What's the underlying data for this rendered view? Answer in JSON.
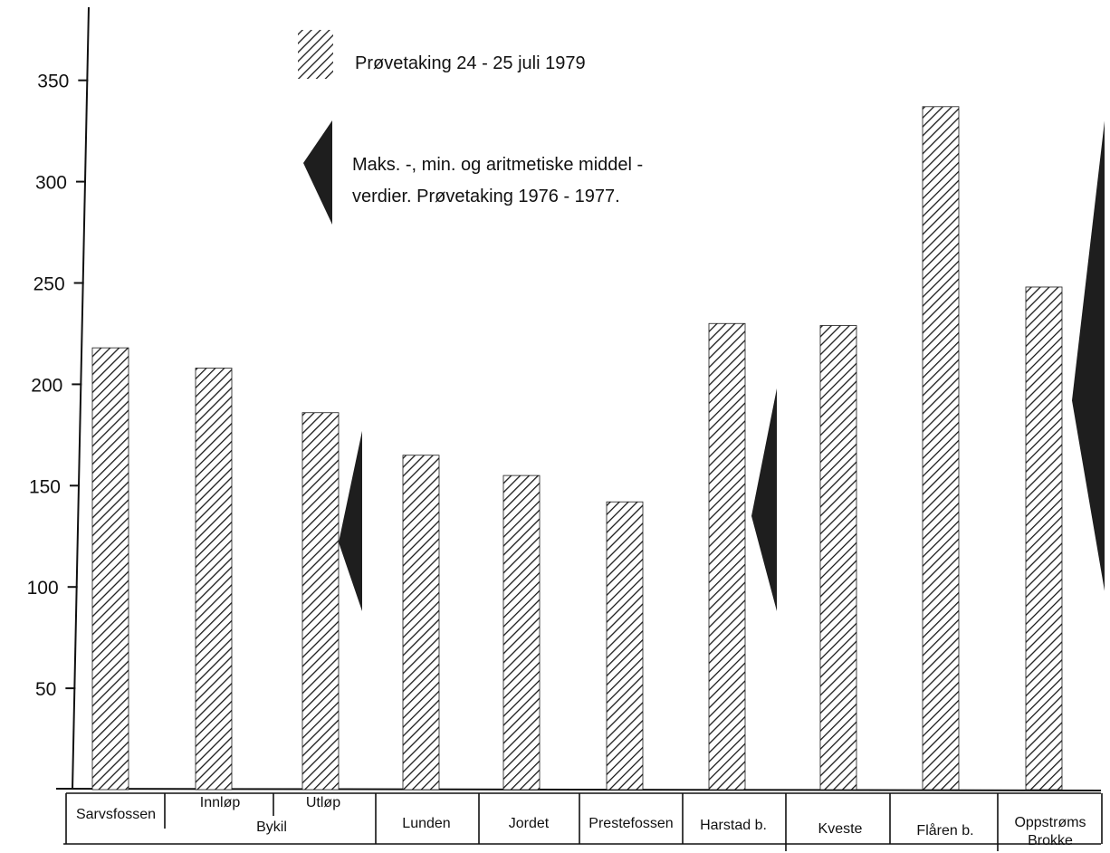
{
  "chart_data": {
    "type": "bar",
    "title": "",
    "xlabel": "",
    "ylabel": "",
    "ylim": [
      0,
      375
    ],
    "yticks": [
      50,
      100,
      150,
      200,
      250,
      300,
      350
    ],
    "grid": false,
    "legend": {
      "placement": "top-center",
      "hatch_label": "Prøvetaking 24 - 25 juli 1979",
      "range_label_line1": "Maks. -, min. og aritmetiske middel -",
      "range_label_line2": "verdier. Prøvetaking 1976 - 1977."
    },
    "categories": [
      "Sarvsfossen",
      "Innløp",
      "Utløp",
      "Lunden",
      "Jordet",
      "Prestefossen",
      "Harstad b.",
      "Kveste",
      "Flåren b.",
      "Oppstrøms Brokke"
    ],
    "group_label": "Bykil",
    "category_display": [
      [
        "Sarvsfossen"
      ],
      [
        "Innløp"
      ],
      [
        "Utløp"
      ],
      [
        "Lunden"
      ],
      [
        "Jordet"
      ],
      [
        "Prestefossen"
      ],
      [
        "Harstad b."
      ],
      [
        "Kveste"
      ],
      [
        "Flåren b."
      ],
      [
        "Oppstrøms",
        "Brokke"
      ]
    ],
    "series": [
      {
        "values": [
          218,
          208,
          186,
          165,
          155,
          142,
          230,
          229,
          337,
          248
        ]
      }
    ],
    "ranges": [
      {
        "category": "Utløp",
        "max": 177,
        "mean": 122,
        "min": 88
      },
      {
        "category": "Harstad b.",
        "max": 198,
        "mean": 135,
        "min": 88
      },
      {
        "category": "Oppstrøms Brokke",
        "max": 330,
        "mean": 192,
        "min": 98
      }
    ],
    "colors": {
      "bar_stroke": "#1a1a1a",
      "range_fill": "#1e1e1e",
      "axis": "#111111"
    }
  }
}
